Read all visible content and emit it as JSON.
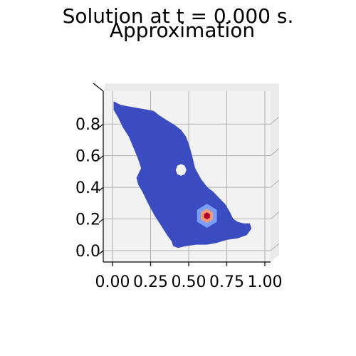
{
  "chart_data": {
    "type": "surface",
    "title": "Solution at t = 0.000 s.",
    "subtitle": "Approximation",
    "xlabel": "",
    "ylabel": "",
    "xlim": [
      0.0,
      1.0
    ],
    "ylim": [
      0.0,
      0.9
    ],
    "x_ticks": [
      "0.00",
      "0.25",
      "0.50",
      "0.75",
      "1.00"
    ],
    "y_ticks": [
      "0.0",
      "0.2",
      "0.4",
      "0.6",
      "0.8"
    ],
    "grid": true,
    "view": "top-down",
    "colormap": "coolwarm",
    "colors": {
      "low": "#3b4cc0",
      "mid_low": "#7b9ff9",
      "mid_high": "#f49a7b",
      "high": "#b40426",
      "pane": "#f2f2f2",
      "grid": "#b0b0b0"
    },
    "domain_boundary": [
      [
        0.01,
        0.94
      ],
      [
        0.05,
        0.92
      ],
      [
        0.1,
        0.91
      ],
      [
        0.16,
        0.9
      ],
      [
        0.22,
        0.89
      ],
      [
        0.27,
        0.88
      ],
      [
        0.31,
        0.85
      ],
      [
        0.36,
        0.82
      ],
      [
        0.41,
        0.79
      ],
      [
        0.45,
        0.76
      ],
      [
        0.48,
        0.72
      ],
      [
        0.5,
        0.67
      ],
      [
        0.52,
        0.6
      ],
      [
        0.54,
        0.52
      ],
      [
        0.58,
        0.45
      ],
      [
        0.62,
        0.4
      ],
      [
        0.66,
        0.37
      ],
      [
        0.7,
        0.33
      ],
      [
        0.74,
        0.29
      ],
      [
        0.77,
        0.24
      ],
      [
        0.79,
        0.2
      ],
      [
        0.82,
        0.18
      ],
      [
        0.86,
        0.17
      ],
      [
        0.9,
        0.17
      ],
      [
        0.91,
        0.14
      ],
      [
        0.88,
        0.1
      ],
      [
        0.82,
        0.08
      ],
      [
        0.75,
        0.07
      ],
      [
        0.68,
        0.05
      ],
      [
        0.62,
        0.04
      ],
      [
        0.55,
        0.04
      ],
      [
        0.48,
        0.03
      ],
      [
        0.43,
        0.02
      ],
      [
        0.4,
        0.03
      ],
      [
        0.39,
        0.06
      ],
      [
        0.36,
        0.1
      ],
      [
        0.32,
        0.16
      ],
      [
        0.28,
        0.22
      ],
      [
        0.24,
        0.29
      ],
      [
        0.2,
        0.37
      ],
      [
        0.17,
        0.42
      ],
      [
        0.16,
        0.46
      ],
      [
        0.19,
        0.52
      ],
      [
        0.17,
        0.58
      ],
      [
        0.14,
        0.65
      ],
      [
        0.11,
        0.72
      ],
      [
        0.07,
        0.78
      ],
      [
        0.04,
        0.84
      ],
      [
        0.01,
        0.89
      ]
    ],
    "hole_center": [
      0.45,
      0.51
    ],
    "hole_radius": 0.035,
    "bump_center": [
      0.62,
      0.22
    ],
    "bump_levels": [
      {
        "radius": 0.075,
        "color": "#7b9ff9"
      },
      {
        "radius": 0.045,
        "color": "#f49a7b"
      },
      {
        "radius": 0.022,
        "color": "#b40426"
      }
    ]
  }
}
